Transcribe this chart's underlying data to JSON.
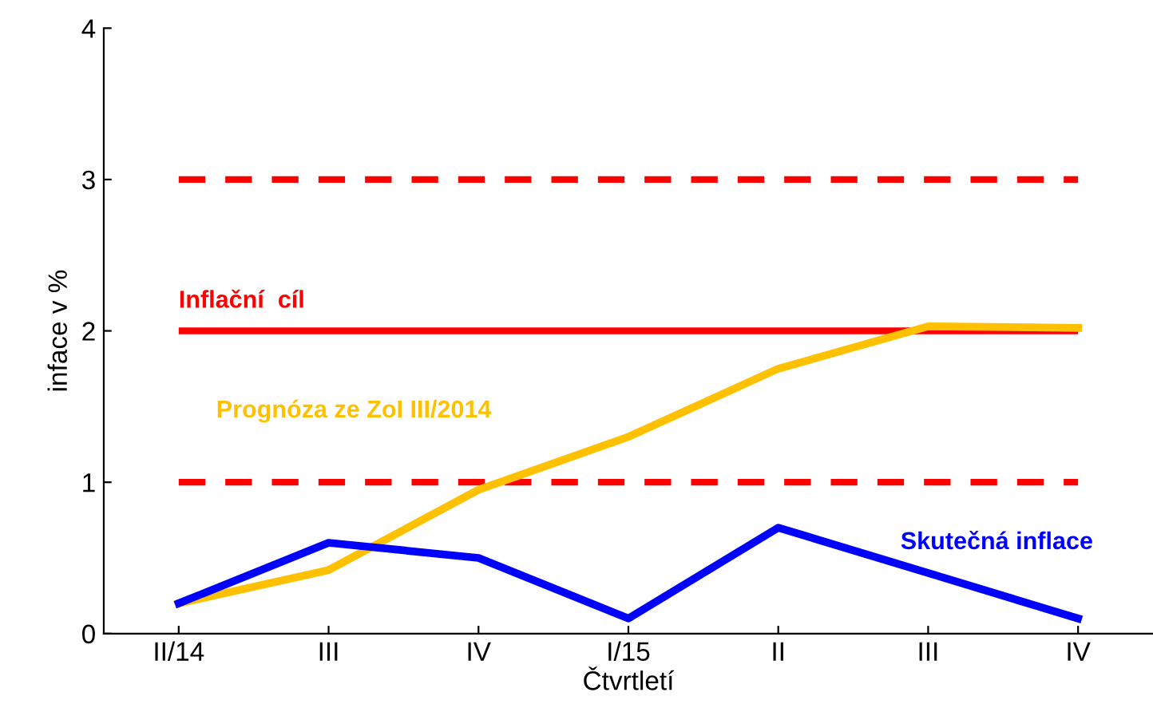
{
  "chart_data": {
    "type": "line",
    "xlabel": "Čtvrtletí",
    "ylabel": "inface v %",
    "categories": [
      "II/14",
      "III",
      "IV",
      "I/15",
      "II",
      "III",
      "IV"
    ],
    "series": [
      {
        "name": "Prognóza ze ZoI III/2014",
        "color": "#ffc000",
        "values": [
          0.2,
          0.42,
          0.95,
          1.3,
          1.75,
          2.03,
          2.02
        ]
      },
      {
        "name": "Skutečná inflace",
        "color": "#0000ff",
        "values": [
          0.2,
          0.6,
          0.5,
          0.1,
          0.7,
          0.4,
          0.1
        ]
      }
    ],
    "ref_lines": [
      {
        "axis": "y",
        "value": 3,
        "label": null,
        "color": "#ff0000",
        "line_style": "dashed"
      },
      {
        "axis": "y",
        "value": 2,
        "label": "Inflační  cíl",
        "color": "#ff0000",
        "line_style": "solid"
      },
      {
        "axis": "y",
        "value": 1,
        "label": null,
        "color": "#ff0000",
        "line_style": "dashed"
      }
    ],
    "ylim": [
      0,
      4
    ],
    "yticks": [
      0,
      1,
      2,
      3,
      4
    ],
    "grid": false,
    "legend": false,
    "marker": "none",
    "line_style": "solid"
  }
}
